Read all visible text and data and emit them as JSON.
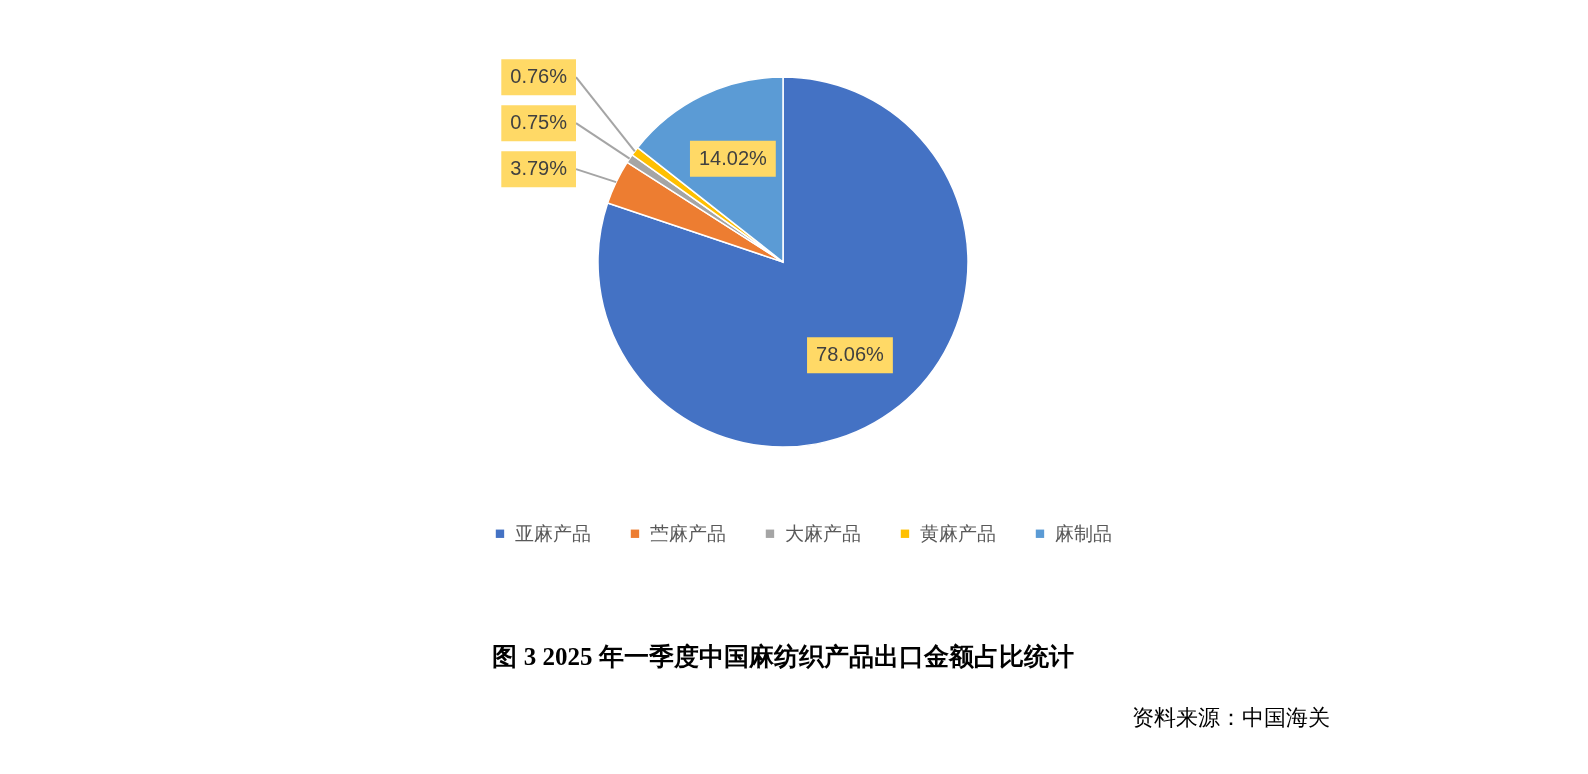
{
  "chart_data": {
    "type": "pie",
    "title": "图 3  2025 年一季度中国麻纺织产品出口金额占比统计",
    "categories": [
      "亚麻产品",
      "苎麻产品",
      "大麻产品",
      "黄麻产品",
      "麻制品"
    ],
    "values": [
      78.06,
      3.79,
      0.75,
      0.76,
      14.02
    ],
    "colors": [
      "#4472c4",
      "#ed7d31",
      "#a5a5a5",
      "#ffc000",
      "#5b9bd5"
    ],
    "value_labels": [
      "78.06%",
      "3.79%",
      "0.75%",
      "0.76%",
      "14.02%"
    ],
    "legend": "bottom",
    "annotations": [
      "资料来源：中国海关"
    ]
  }
}
